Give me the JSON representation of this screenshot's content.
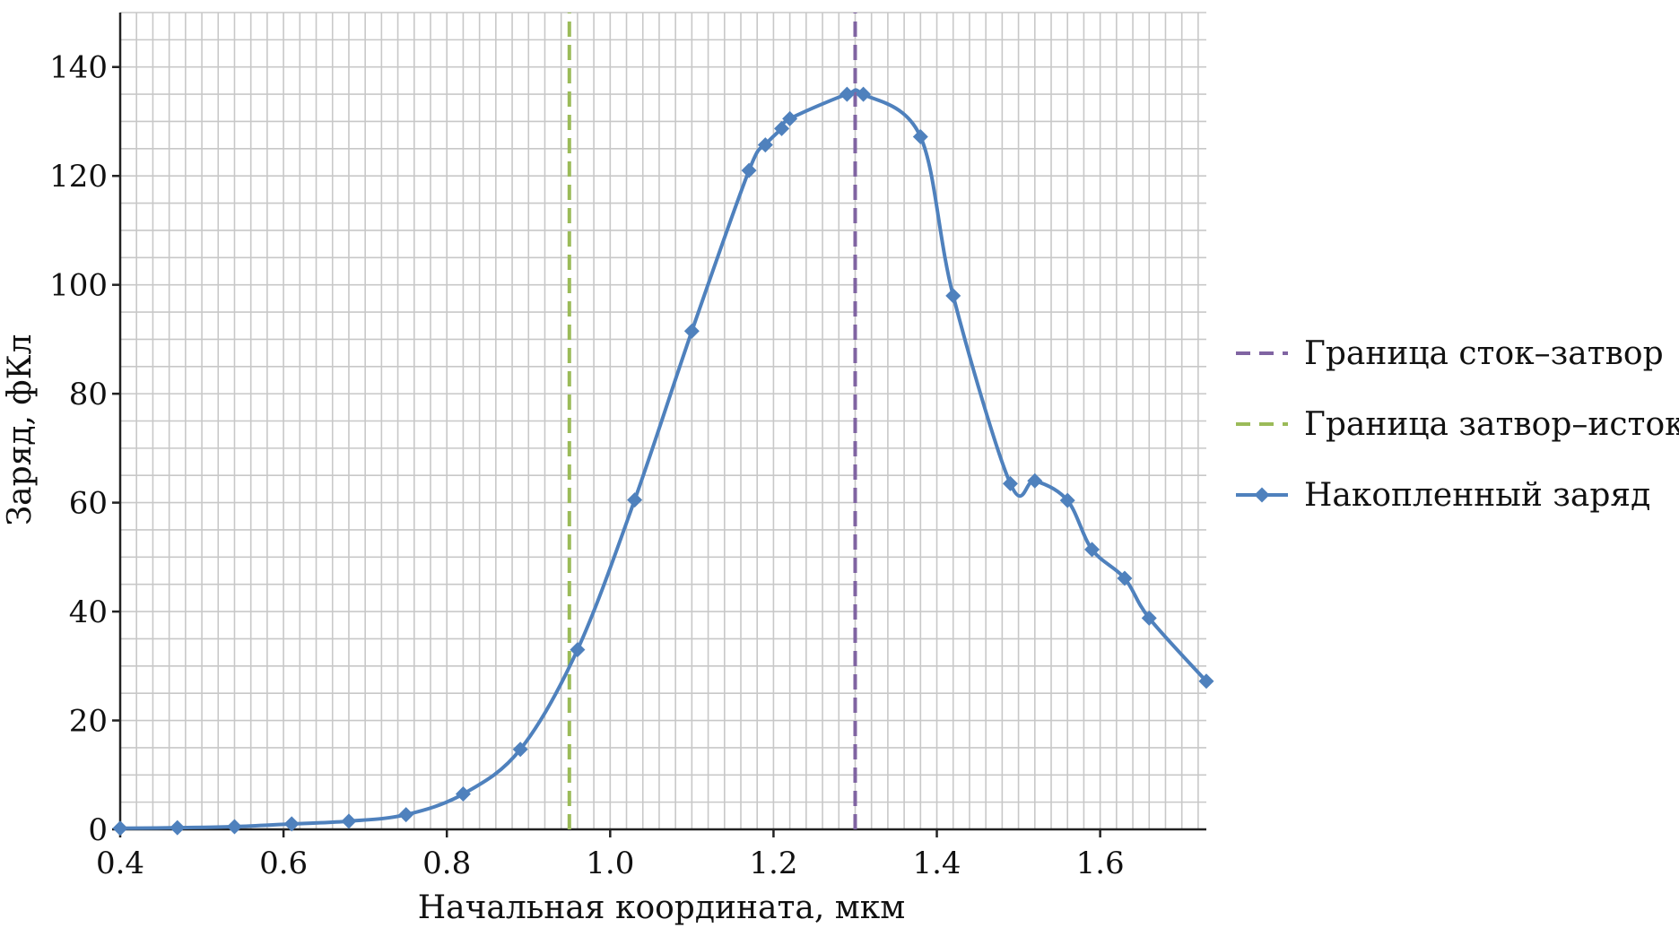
{
  "chart_data": {
    "type": "line",
    "xlabel": "Начальная координата, мкм",
    "ylabel": "Заряд, фКл",
    "xlim": [
      0.4,
      1.73
    ],
    "ylim": [
      0,
      150
    ],
    "x_ticks": [
      0.4,
      0.6,
      0.8,
      1.0,
      1.2,
      1.4,
      1.6
    ],
    "x_tick_labels": [
      "0.4",
      "0.6",
      "0.8",
      "1.0",
      "1.2",
      "1.4",
      "1.6"
    ],
    "y_ticks": [
      0,
      20,
      40,
      60,
      80,
      100,
      120,
      140
    ],
    "y_tick_labels": [
      "0",
      "20",
      "40",
      "60",
      "80",
      "100",
      "120",
      "140"
    ],
    "x_minor_step": 0.02,
    "y_minor_step": 5,
    "grid": true,
    "legend_position": "right",
    "series": [
      {
        "name": "Накопленный заряд",
        "style": "solid-diamond",
        "color": "#4f81bd",
        "x": [
          0.4,
          0.47,
          0.54,
          0.61,
          0.68,
          0.75,
          0.82,
          0.89,
          0.96,
          1.03,
          1.1,
          1.17,
          1.19,
          1.21,
          1.22,
          1.29,
          1.31,
          1.38,
          1.42,
          1.49,
          1.52,
          1.56,
          1.59,
          1.63,
          1.66,
          1.73
        ],
        "y": [
          0.2,
          0.3,
          0.5,
          1.0,
          1.5,
          2.7,
          6.5,
          14.7,
          33.0,
          60.5,
          91.5,
          121.0,
          125.7,
          128.7,
          130.5,
          135.0,
          135.0,
          127.2,
          98.0,
          63.5,
          64.0,
          60.4,
          51.4,
          46.1,
          38.8,
          27.2
        ]
      },
      {
        "name": "Граница сток–затвор",
        "style": "dashed-vertical",
        "color": "#8064a2",
        "x": [
          1.3,
          1.3
        ],
        "y": [
          0,
          150
        ]
      },
      {
        "name": "Граница затвор–исток",
        "style": "dashed-vertical",
        "color": "#9bbb59",
        "x": [
          0.95,
          0.95
        ],
        "y": [
          0,
          150
        ]
      }
    ],
    "legend_order": [
      "Граница сток–затвор",
      "Граница затвор–исток",
      "Накопленный заряд"
    ]
  }
}
